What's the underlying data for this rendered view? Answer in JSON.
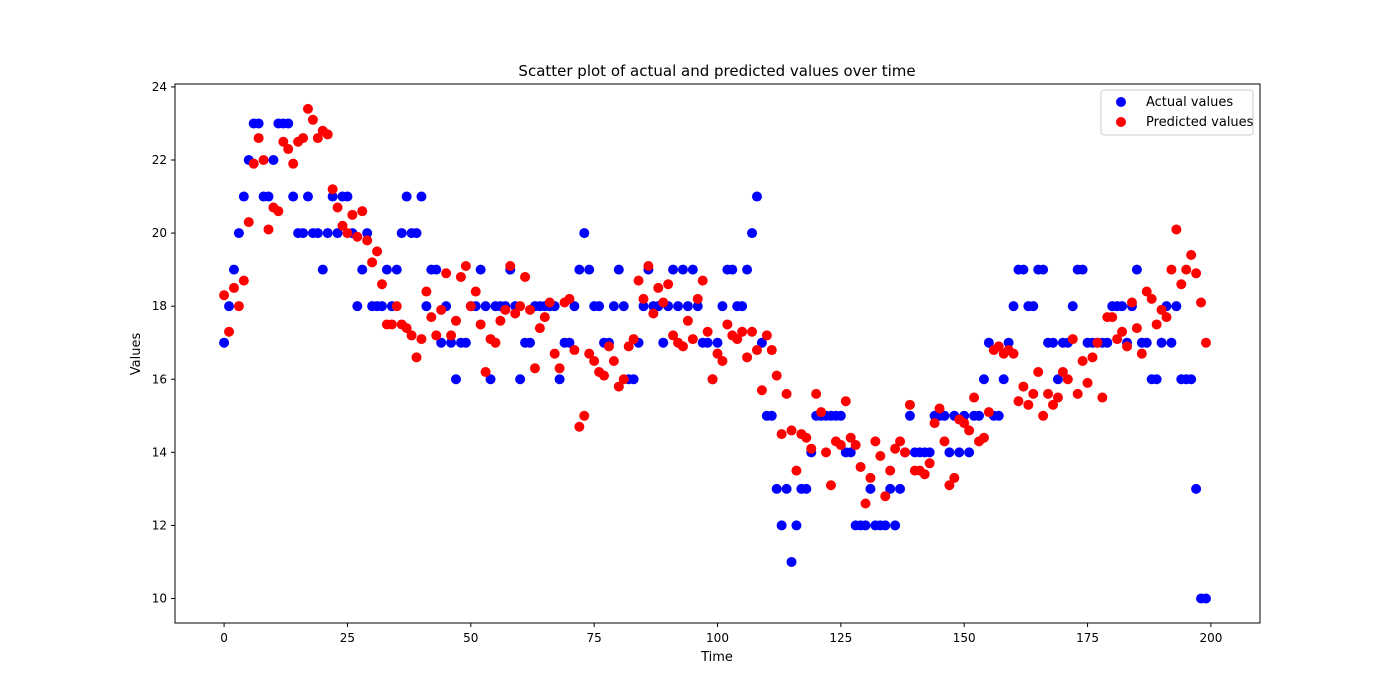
{
  "chart_data": {
    "type": "scatter",
    "title": "Scatter plot of actual and predicted values over time",
    "xlabel": "Time",
    "ylabel": "Values",
    "xlim": [
      -9.95,
      209.95
    ],
    "ylim": [
      9.33,
      24.08
    ],
    "xticks": [
      0,
      25,
      50,
      75,
      100,
      125,
      150,
      175,
      200
    ],
    "yticks": [
      10,
      12,
      14,
      16,
      18,
      20,
      22,
      24
    ],
    "xtick_labels": [
      "0",
      "25",
      "50",
      "75",
      "100",
      "125",
      "150",
      "175",
      "200"
    ],
    "ytick_labels": [
      "10",
      "12",
      "14",
      "16",
      "18",
      "20",
      "22",
      "24"
    ],
    "grid": false,
    "legend_position": "top-right",
    "x": [
      0,
      1,
      2,
      3,
      4,
      5,
      6,
      7,
      8,
      9,
      10,
      11,
      12,
      13,
      14,
      15,
      16,
      17,
      18,
      19,
      20,
      21,
      22,
      23,
      24,
      25,
      26,
      27,
      28,
      29,
      30,
      31,
      32,
      33,
      34,
      35,
      36,
      37,
      38,
      39,
      40,
      41,
      42,
      43,
      44,
      45,
      46,
      47,
      48,
      49,
      50,
      51,
      52,
      53,
      54,
      55,
      56,
      57,
      58,
      59,
      60,
      61,
      62,
      63,
      64,
      65,
      66,
      67,
      68,
      69,
      70,
      71,
      72,
      73,
      74,
      75,
      76,
      77,
      78,
      79,
      80,
      81,
      82,
      83,
      84,
      85,
      86,
      87,
      88,
      89,
      90,
      91,
      92,
      93,
      94,
      95,
      96,
      97,
      98,
      99,
      100,
      101,
      102,
      103,
      104,
      105,
      106,
      107,
      108,
      109,
      110,
      111,
      112,
      113,
      114,
      115,
      116,
      117,
      118,
      119,
      120,
      121,
      122,
      123,
      124,
      125,
      126,
      127,
      128,
      129,
      130,
      131,
      132,
      133,
      134,
      135,
      136,
      137,
      138,
      139,
      140,
      141,
      142,
      143,
      144,
      145,
      146,
      147,
      148,
      149,
      150,
      151,
      152,
      153,
      154,
      155,
      156,
      157,
      158,
      159,
      160,
      161,
      162,
      163,
      164,
      165,
      166,
      167,
      168,
      169,
      170,
      171,
      172,
      173,
      174,
      175,
      176,
      177,
      178,
      179,
      180,
      181,
      182,
      183,
      184,
      185,
      186,
      187,
      188,
      189,
      190,
      191,
      192,
      193,
      194,
      195,
      196,
      197,
      198,
      199
    ],
    "series": [
      {
        "name": "Actual values",
        "color": "#0000ff",
        "values": [
          17,
          18,
          19,
          20,
          21,
          22,
          23,
          23,
          21,
          21,
          22,
          23,
          23,
          23,
          21,
          20,
          20,
          21,
          20,
          20,
          19,
          20,
          21,
          20,
          21,
          21,
          20,
          18,
          19,
          20,
          18,
          18,
          18,
          19,
          18,
          19,
          20,
          21,
          20,
          20,
          21,
          18,
          19,
          19,
          17,
          18,
          17,
          16,
          17,
          17,
          18,
          18,
          19,
          18,
          16,
          18,
          18,
          18,
          19,
          18,
          16,
          17,
          17,
          18,
          18,
          18,
          18,
          18,
          16,
          17,
          17,
          18,
          19,
          20,
          19,
          18,
          18,
          17,
          17,
          18,
          19,
          18,
          16,
          16,
          17,
          18,
          19,
          18,
          18,
          17,
          18,
          19,
          18,
          19,
          18,
          19,
          18,
          17,
          17,
          16,
          17,
          18,
          19,
          19,
          18,
          18,
          19,
          20,
          21,
          17,
          15,
          15,
          13,
          12,
          13,
          11,
          12,
          13,
          13,
          14,
          15,
          15,
          15,
          15,
          15,
          15,
          14,
          14,
          12,
          12,
          12,
          13,
          12,
          12,
          12,
          13,
          12,
          13,
          14,
          15,
          14,
          14,
          14,
          14,
          15,
          15,
          15,
          14,
          15,
          14,
          15,
          14,
          15,
          15,
          16,
          17,
          15,
          15,
          16,
          17,
          18,
          19,
          19,
          18,
          18,
          19,
          19,
          17,
          17,
          16,
          17,
          17,
          18,
          19,
          19,
          17,
          17,
          17,
          17,
          17,
          18,
          18,
          18,
          17,
          18,
          19,
          17,
          17,
          16,
          16,
          17,
          18,
          17,
          18,
          16,
          16,
          16,
          13,
          10,
          10
        ]
      },
      {
        "name": "Predicted values",
        "color": "#ff0000",
        "values": [
          18.3,
          17.3,
          18.5,
          18.0,
          18.7,
          20.3,
          21.9,
          22.6,
          22.0,
          20.1,
          20.7,
          20.6,
          22.5,
          22.3,
          21.9,
          22.5,
          22.6,
          23.4,
          23.1,
          22.6,
          22.8,
          22.7,
          21.2,
          20.7,
          20.2,
          20.0,
          20.5,
          19.9,
          20.6,
          19.8,
          19.2,
          19.5,
          18.6,
          17.5,
          17.5,
          18.0,
          17.5,
          17.4,
          17.2,
          16.6,
          17.1,
          18.4,
          17.7,
          17.2,
          17.9,
          18.9,
          17.2,
          17.6,
          18.8,
          19.1,
          18.0,
          18.4,
          17.5,
          16.2,
          17.1,
          17.0,
          17.6,
          17.9,
          19.1,
          17.8,
          18.0,
          18.8,
          17.9,
          16.3,
          17.4,
          17.7,
          18.1,
          16.7,
          16.3,
          18.1,
          18.2,
          16.8,
          14.7,
          15.0,
          16.7,
          16.5,
          16.2,
          16.1,
          16.9,
          16.5,
          15.8,
          16.0,
          16.9,
          17.1,
          18.7,
          18.2,
          19.1,
          17.8,
          18.5,
          18.1,
          18.6,
          17.2,
          17.0,
          16.9,
          17.6,
          17.1,
          18.2,
          18.7,
          17.3,
          16.0,
          16.7,
          16.5,
          17.5,
          17.2,
          17.1,
          17.3,
          16.6,
          17.3,
          16.8,
          15.7,
          17.2,
          16.8,
          16.1,
          14.5,
          15.6,
          14.6,
          13.5,
          14.5,
          14.4,
          14.1,
          15.6,
          15.1,
          14.0,
          13.1,
          14.3,
          14.2,
          15.4,
          14.4,
          14.2,
          13.6,
          12.6,
          13.3,
          14.3,
          13.9,
          12.8,
          13.5,
          14.1,
          14.3,
          14.0,
          15.3,
          13.5,
          13.5,
          13.4,
          13.7,
          14.8,
          15.2,
          14.3,
          13.1,
          13.3,
          14.9,
          14.8,
          14.6,
          15.5,
          14.3,
          14.4,
          15.1,
          16.8,
          16.9,
          16.7,
          16.8,
          16.7,
          15.4,
          15.8,
          15.3,
          15.6,
          16.2,
          15.0,
          15.6,
          15.3,
          15.5,
          16.2,
          16.0,
          17.1,
          15.6,
          16.5,
          15.9,
          16.6,
          17.0,
          15.5,
          17.7,
          17.7,
          17.1,
          17.3,
          16.9,
          18.1,
          17.4,
          16.7,
          18.4,
          18.2,
          17.5,
          17.9,
          17.7,
          19.0,
          20.1,
          18.6,
          19.0,
          19.4,
          18.9,
          18.1,
          17.0
        ]
      }
    ]
  }
}
